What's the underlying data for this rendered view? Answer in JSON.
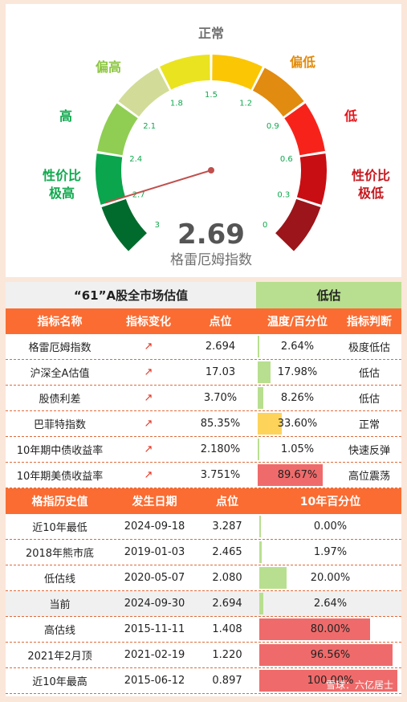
{
  "gauge": {
    "value": "2.69",
    "value_num": 2.69,
    "label": "格雷厄姆指数",
    "zones": [
      {
        "label": "性价比\n极高",
        "color": "#10a94e"
      },
      {
        "label": "高",
        "color": "#10a94e"
      },
      {
        "label": "偏高",
        "color": "#8cc63f"
      },
      {
        "label": "正常",
        "color": "#707070"
      },
      {
        "label": "偏低",
        "color": "#e28b0b"
      },
      {
        "label": "低",
        "color": "#e8141a"
      },
      {
        "label": "性价比\n极低",
        "color": "#c5181e"
      }
    ],
    "ticks": [
      "3",
      "2.7",
      "2.4",
      "2.1",
      "1.8",
      "1.5",
      "1.2",
      "0.9",
      "0.6",
      "0.3",
      "0"
    ],
    "tick_color": "#10a94e"
  },
  "chart_data": {
    "type": "table",
    "title": "“61”A股全市场估值",
    "verdict": "低估",
    "headers1": [
      "指标名称",
      "指标变化",
      "点位",
      "温度/百分位",
      "指标判断"
    ],
    "rows1": [
      {
        "name": "格雷厄姆指数",
        "change": "↗",
        "value": "2.694",
        "pct": "2.64%",
        "pct_num": 2.64,
        "judge": "极度低估"
      },
      {
        "name": "沪深全A估值",
        "change": "↗",
        "value": "17.03",
        "pct": "17.98%",
        "pct_num": 17.98,
        "judge": "低估"
      },
      {
        "name": "股债利差",
        "change": "↗",
        "value": "3.70%",
        "pct": "8.26%",
        "pct_num": 8.26,
        "judge": "低估"
      },
      {
        "name": "巴菲特指数",
        "change": "↗",
        "value": "85.35%",
        "pct": "33.60%",
        "pct_num": 33.6,
        "judge": "正常"
      },
      {
        "name": "10年期中债收益率",
        "change": "↗",
        "value": "2.180%",
        "pct": "1.05%",
        "pct_num": 1.05,
        "judge": "快速反弹"
      },
      {
        "name": "10年期美债收益率",
        "change": "↗",
        "value": "3.751%",
        "pct": "89.67%",
        "pct_num": 89.67,
        "judge": "高位震荡"
      }
    ],
    "headers2": [
      "格指历史值",
      "发生日期",
      "点位",
      "10年百分位"
    ],
    "rows2": [
      {
        "name": "近10年最低",
        "date": "2024-09-18",
        "value": "3.287",
        "pct": "0.00%",
        "pct_num": 0.0
      },
      {
        "name": "2018年熊市底",
        "date": "2019-01-03",
        "value": "2.465",
        "pct": "1.97%",
        "pct_num": 1.97
      },
      {
        "name": "低估线",
        "date": "2020-05-07",
        "value": "2.080",
        "pct": "20.00%",
        "pct_num": 20.0
      },
      {
        "name": "当前",
        "date": "2024-09-30",
        "value": "2.694",
        "pct": "2.64%",
        "pct_num": 2.64
      },
      {
        "name": "高估线",
        "date": "2015-11-11",
        "value": "1.408",
        "pct": "80.00%",
        "pct_num": 80.0
      },
      {
        "name": "2021年2月顶",
        "date": "2021-02-19",
        "value": "1.220",
        "pct": "96.56%",
        "pct_num": 96.56
      },
      {
        "name": "近10年最高",
        "date": "2015-06-12",
        "value": "0.897",
        "pct": "100.00%",
        "pct_num": 100.0
      }
    ],
    "colors": {
      "green": "#b8df8f",
      "yellow": "#fdd35a",
      "red": "#ef6b6b"
    }
  },
  "watermark": "雪球：六亿居士"
}
